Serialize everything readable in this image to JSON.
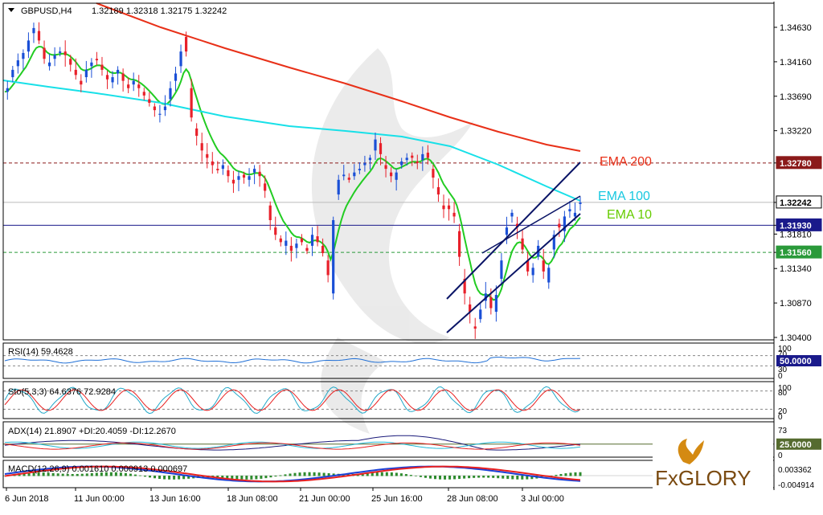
{
  "header": {
    "symbol": "GBPUSD,H4",
    "ohlc": "1.32189 1.32318 1.32175 1.32242"
  },
  "colors": {
    "bull": "#1a4fd6",
    "bear": "#e8202a",
    "ema10": "#22cc22",
    "ema100": "#18e0e8",
    "ema200": "#e83018",
    "channel": "#0a1466",
    "resistance_line": "#8b1a1a",
    "support_line": "#1a1a8b",
    "support2_line": "#2a9a3a"
  },
  "chart_data": [
    {
      "type": "candlestick",
      "panel": "price",
      "symbol": "GBPUSD",
      "timeframe": "H4",
      "y_axis_ticks": [
        "1.34630",
        "1.34160",
        "1.33690",
        "1.33220",
        "1.32780",
        "1.32242",
        "1.31930",
        "1.31810",
        "1.31560",
        "1.31340",
        "1.30870",
        "1.30400"
      ],
      "highlighted_levels": [
        {
          "label": "1.32780",
          "value": 1.3278,
          "style": "dashed",
          "color": "#8b1a1a"
        },
        {
          "label": "1.32242",
          "value": 1.32242,
          "style": "current-price",
          "color": "#000000"
        },
        {
          "label": "1.31930",
          "value": 1.3193,
          "style": "solid",
          "color": "#1a1a8b"
        },
        {
          "label": "1.31560",
          "value": 1.3156,
          "style": "dashed",
          "color": "#2a9a3a"
        }
      ],
      "x_tick_labels": [
        "6 Jun 2018",
        "11 Jun 00:00",
        "13 Jun 16:00",
        "18 Jun 08:00",
        "21 Jun 00:00",
        "25 Jun 16:00",
        "28 Jun 08:00",
        "3 Jul 00:00"
      ],
      "annotations": [
        {
          "text": "EMA 200",
          "color": "#e83018"
        },
        {
          "text": "EMA 100",
          "color": "#18c8e0"
        },
        {
          "text": "EMA 10",
          "color": "#66cc00"
        }
      ],
      "close_path": [
        1.3375,
        1.338,
        1.3395,
        1.3405,
        1.341,
        1.3418,
        1.342,
        1.3428,
        1.343,
        1.3445,
        1.3455,
        1.3462,
        1.3458,
        1.3445,
        1.3435,
        1.342,
        1.341,
        1.3415,
        1.342,
        1.3425,
        1.3428,
        1.343,
        1.343,
        1.3425,
        1.342,
        1.3412,
        1.3405,
        1.3398,
        1.339,
        1.3385,
        1.3395,
        1.3405,
        1.341,
        1.3415,
        1.342,
        1.3418,
        1.3412,
        1.3405,
        1.3398,
        1.3392,
        1.3388,
        1.3395,
        1.34,
        1.3405,
        1.34,
        1.339,
        1.3385,
        1.338,
        1.3385,
        1.339,
        1.3385,
        1.338,
        1.3375,
        1.337,
        1.3365,
        1.336,
        1.3355,
        1.335,
        1.3345,
        1.3345,
        1.335,
        1.3355,
        1.3365,
        1.338,
        1.339,
        1.34,
        1.341,
        1.343,
        1.345,
        1.343,
        1.338,
        1.334,
        1.3325,
        1.3315,
        1.3305,
        1.3295,
        1.329,
        1.3285,
        1.328,
        1.3275,
        1.327,
        1.3268,
        1.327,
        1.3275,
        1.3268,
        1.326,
        1.3255,
        1.325,
        1.3255,
        1.326,
        1.3262,
        1.3258,
        1.3255,
        1.326,
        1.3265,
        1.327,
        1.3266,
        1.326,
        1.325,
        1.324,
        1.322,
        1.32,
        1.319,
        1.318,
        1.3175,
        1.317,
        1.3165,
        1.3172,
        1.3165,
        1.3158,
        1.3162,
        1.3168,
        1.3175,
        1.317,
        1.3162,
        1.3158,
        1.3165,
        1.318,
        1.3178,
        1.317,
        1.3165,
        1.3155,
        1.3145,
        1.3125,
        1.31,
        1.32,
        1.3235,
        1.3255,
        1.326,
        1.3262,
        1.3258,
        1.3255,
        1.326,
        1.3265,
        1.3268,
        1.327,
        1.3275,
        1.3278,
        1.3282,
        1.3285,
        1.3295,
        1.331,
        1.3305,
        1.329,
        1.3275,
        1.327,
        1.3265,
        1.326,
        1.3255,
        1.3265,
        1.3275,
        1.328,
        1.3282,
        1.3285,
        1.3288,
        1.3285,
        1.328,
        1.3278,
        1.3282,
        1.329,
        1.3292,
        1.3285,
        1.327,
        1.3258,
        1.3245,
        1.3235,
        1.322,
        1.3215,
        1.322,
        1.3215,
        1.321,
        1.3205,
        1.3185,
        1.315,
        1.312,
        1.31,
        1.3085,
        1.3075,
        1.3055,
        1.3052,
        1.3065,
        1.3078,
        1.309,
        1.31,
        1.3095,
        1.308,
        1.3075,
        1.3098,
        1.312,
        1.3145,
        1.318,
        1.319,
        1.3205,
        1.321,
        1.3195,
        1.319,
        1.3175,
        1.316,
        1.3145,
        1.313,
        1.3125,
        1.3135,
        1.315,
        1.3165,
        1.3145,
        1.313,
        1.3115,
        1.3135,
        1.316,
        1.318,
        1.3195,
        1.319,
        1.3185,
        1.3205,
        1.3212,
        1.3215,
        1.3205,
        1.321,
        1.3222,
        1.3224
      ]
    },
    {
      "type": "line",
      "panel": "rsi",
      "label": "RSI(14) 59.4628",
      "y_ticks": [
        "100",
        "70",
        "30",
        "0"
      ],
      "level_label": "50.0000"
    },
    {
      "type": "line",
      "panel": "stochastic",
      "label": "Sto(5,3,3) 64.6376 72.9284",
      "y_ticks": [
        "100",
        "80",
        "20",
        "0"
      ]
    },
    {
      "type": "line",
      "panel": "adx",
      "label": "ADX(14) 21.8907 +DI:20.4059 -DI:12.2670",
      "y_ticks": [
        "73",
        "0"
      ],
      "level_label": "25.0000"
    },
    {
      "type": "bar",
      "panel": "macd",
      "label": "MACD(12,26,9) 0.001610 0.000913 0.000697",
      "y_ticks": [
        "0.003362",
        "-0.004914"
      ]
    }
  ]
}
